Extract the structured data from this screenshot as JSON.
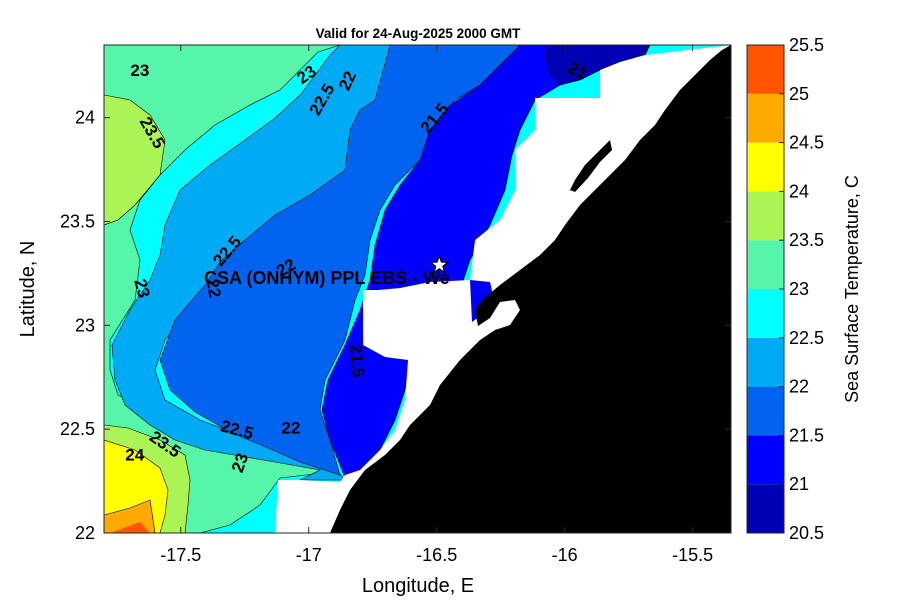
{
  "title": "Valid for 24-Aug-2025 2000 GMT",
  "xlabel": "Longitude, E",
  "ylabel": "Latitude, N",
  "colorbar_label": "Sea Surface Temperature, C",
  "site_label": "CSA (ONHYM) PPL EBS  - We",
  "site_marker_icon": "star-icon",
  "land_color": "#000000",
  "chart_data": {
    "type": "heatmap",
    "xlim": [
      -17.8,
      -15.35
    ],
    "ylim": [
      22.0,
      24.35
    ],
    "x_ticks": [
      -17.5,
      -17,
      -16.5,
      -16,
      -15.5
    ],
    "x_tick_labels": [
      "-17.5",
      "-17",
      "-16.5",
      "-16",
      "-15.5"
    ],
    "y_ticks": [
      22,
      22.5,
      23,
      23.5,
      24
    ],
    "y_tick_labels": [
      "22",
      "22.5",
      "23",
      "23.5",
      "24"
    ],
    "colorbar": {
      "levels": [
        20.5,
        21,
        21.5,
        22,
        22.5,
        23,
        23.5,
        24,
        24.5,
        25,
        25.5
      ],
      "tick_labels": [
        "20.5",
        "21",
        "21.5",
        "22",
        "22.5",
        "23",
        "23.5",
        "24",
        "24.5",
        "25",
        "25.5"
      ],
      "colors": [
        "#0000b4",
        "#0000ff",
        "#0064f0",
        "#00aaf5",
        "#00ffff",
        "#55f5aa",
        "#aaf555",
        "#ffff00",
        "#ffaa00",
        "#ff5500"
      ]
    },
    "site": {
      "lon": -16.49,
      "lat": 23.29
    },
    "contour_labels": [
      {
        "text": "23",
        "lon": -17.66,
        "lat": 24.2
      },
      {
        "text": "23",
        "lon": -17.01,
        "lat": 24.18
      },
      {
        "text": "22.5",
        "lon": -16.95,
        "lat": 24.06
      },
      {
        "text": "22",
        "lon": -16.85,
        "lat": 24.15
      },
      {
        "text": "21.5",
        "lon": -16.51,
        "lat": 23.97
      },
      {
        "text": "21",
        "lon": -15.95,
        "lat": 24.2
      },
      {
        "text": "23.5",
        "lon": -17.61,
        "lat": 23.9
      },
      {
        "text": "22.5",
        "lon": -17.32,
        "lat": 23.33
      },
      {
        "text": "23",
        "lon": -17.65,
        "lat": 23.15
      },
      {
        "text": "22",
        "lon": -17.37,
        "lat": 23.15
      },
      {
        "text": "22",
        "lon": -17.09,
        "lat": 23.25
      },
      {
        "text": "21.5",
        "lon": -16.81,
        "lat": 22.8
      },
      {
        "text": "23.5",
        "lon": -17.56,
        "lat": 22.4
      },
      {
        "text": "24",
        "lon": -17.68,
        "lat": 22.35
      },
      {
        "text": "22.5",
        "lon": -17.28,
        "lat": 22.47
      },
      {
        "text": "22",
        "lon": -17.07,
        "lat": 22.48
      },
      {
        "text": "23",
        "lon": -17.27,
        "lat": 22.31
      }
    ]
  }
}
